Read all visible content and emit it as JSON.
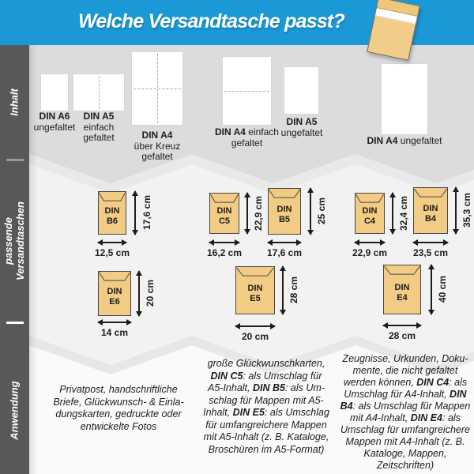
{
  "header": {
    "title": "Welche Versandtasche passt?"
  },
  "colors": {
    "accent_blue": "#1b99d6",
    "sidebar_gray": "#58585a",
    "band_top_gray": "#dcdcdc",
    "band_mid_gray": "#f2f2f2",
    "band_bottom_white": "#fafafa",
    "envelope_tan": "#f2cc85",
    "text_dark": "#1d1d1b"
  },
  "sidebar": {
    "sections": [
      {
        "label": "Inhalt"
      },
      {
        "label": "passende Versandtaschen"
      },
      {
        "label": "Anwendung"
      }
    ]
  },
  "inhalt": {
    "items": [
      {
        "name": "DIN A6",
        "desc": "ungefaltet",
        "fold": "none"
      },
      {
        "name": "DIN A5",
        "desc": "einfach gefaltet",
        "fold": "vertical"
      },
      {
        "name": "DIN A4",
        "desc": "über Kreuz gefaltet",
        "fold": "cross"
      },
      {
        "name": "DIN A4",
        "desc": "einfach gefaltet",
        "fold": "horizontal"
      },
      {
        "name": "DIN A5",
        "desc": "ungefaltet",
        "fold": "none"
      },
      {
        "name": "DIN A4",
        "desc": "ungefaltet",
        "fold": "none"
      }
    ]
  },
  "versandtaschen": {
    "items": [
      {
        "size": "DIN",
        "code": "B6",
        "height": "17,6 cm",
        "width": "12,5 cm"
      },
      {
        "size": "DIN",
        "code": "E6",
        "height": "20 cm",
        "width": "14 cm"
      },
      {
        "size": "DIN",
        "code": "C5",
        "height": "22,9 cm",
        "width": "16,2 cm"
      },
      {
        "size": "DIN",
        "code": "B5",
        "height": "25 cm",
        "width": "17,6 cm"
      },
      {
        "size": "DIN",
        "code": "E5",
        "height": "28 cm",
        "width": "20 cm"
      },
      {
        "size": "DIN",
        "code": "C4",
        "height": "32,4 cm",
        "width": "22,9 cm"
      },
      {
        "size": "DIN",
        "code": "B4",
        "height": "35,3 cm",
        "width": "23,5 cm"
      },
      {
        "size": "DIN",
        "code": "E4",
        "height": "40 cm",
        "width": "28 cm"
      }
    ]
  },
  "anwendung": {
    "blocks": [
      {
        "segments": [
          {
            "t": "Privatpost, handschriftliche Briefe, Glückwunsch- & Einla­dungskarten, gedruckte oder entwickelte Fotos"
          }
        ]
      },
      {
        "segments": [
          {
            "t": "große Glückwunschkarten, "
          },
          {
            "t": "DIN C5",
            "b": true
          },
          {
            "t": ": als Umschlag für A5-Inhalt, "
          },
          {
            "t": "DIN B5",
            "b": true
          },
          {
            "t": ": als Um­schlag für Mappen mit A5-Inhalt, "
          },
          {
            "t": "DIN E5",
            "b": true
          },
          {
            "t": ": als Um­schlag für umfangreichere Mappen mit A5-Inhalt (z. B. Kataloge, Broschüren im A5-Format)"
          }
        ]
      },
      {
        "segments": [
          {
            "t": "Zeugnisse, Urkunden, Doku­mente, die nicht gefaltet werden können, "
          },
          {
            "t": "DIN C4",
            "b": true
          },
          {
            "t": ": als Umschlag für A4-Inhalt, "
          },
          {
            "t": "DIN B4",
            "b": true
          },
          {
            "t": ": als Umschlag für Mappen mit A4-Inhalt, "
          },
          {
            "t": "DIN E4",
            "b": true
          },
          {
            "t": ": als Um­schlag für umfangreichere Mappen mit A4-Inhalt (z. B. Kataloge, Mappen, Zeitschriften)"
          }
        ]
      }
    ]
  }
}
